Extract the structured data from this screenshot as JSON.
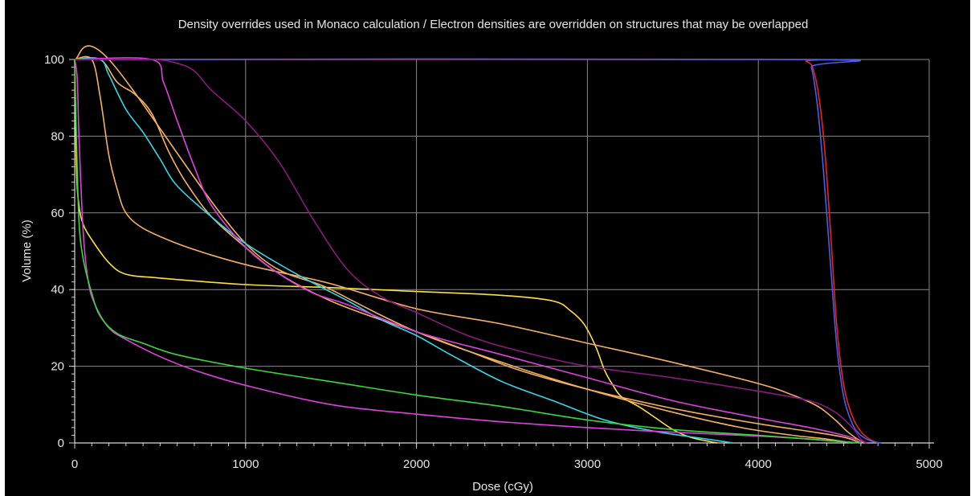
{
  "chart_data": {
    "type": "line",
    "title": "Density overrides used in Monaco calculation / Electron densities are overridden on structures that may be overlapped",
    "xlabel": "Dose (cGy)",
    "ylabel": "Volume (%)",
    "xlim": [
      0,
      5000
    ],
    "ylim": [
      0,
      100
    ],
    "xticks": [
      "0",
      "1000",
      "2000",
      "3000",
      "4000",
      "5000"
    ],
    "yticks": [
      "0",
      "20",
      "40",
      "60",
      "80",
      "100"
    ],
    "grid": true,
    "legend": "none",
    "background": "#000000",
    "series": [
      {
        "color": "#ee2020",
        "points": [
          [
            0,
            100
          ],
          [
            4100,
            100
          ],
          [
            4280,
            99.5
          ],
          [
            4330,
            96
          ],
          [
            4370,
            85
          ],
          [
            4400,
            70
          ],
          [
            4430,
            50
          ],
          [
            4460,
            30
          ],
          [
            4500,
            15
          ],
          [
            4550,
            7
          ],
          [
            4600,
            3
          ],
          [
            4650,
            1
          ],
          [
            4700,
            0
          ]
        ]
      },
      {
        "color": "#4a5cf0",
        "points": [
          [
            0,
            100
          ],
          [
            4270,
            100
          ],
          [
            4310,
            98
          ],
          [
            4340,
            90
          ],
          [
            4370,
            77
          ],
          [
            4400,
            60
          ],
          [
            4430,
            42
          ],
          [
            4460,
            25
          ],
          [
            4500,
            12
          ],
          [
            4550,
            5
          ],
          [
            4600,
            2
          ],
          [
            4660,
            0.5
          ],
          [
            4720,
            0
          ]
        ]
      },
      {
        "color": "#ffe040",
        "points": [
          [
            0,
            100
          ],
          [
            10,
            72
          ],
          [
            25,
            62
          ],
          [
            50,
            57
          ],
          [
            100,
            53
          ],
          [
            200,
            47
          ],
          [
            300,
            44
          ],
          [
            500,
            43
          ],
          [
            1000,
            41.3
          ],
          [
            1500,
            40.5
          ],
          [
            2000,
            39.5
          ],
          [
            2500,
            38.5
          ],
          [
            2800,
            37
          ],
          [
            2900,
            34.5
          ],
          [
            2980,
            31
          ],
          [
            3050,
            25
          ],
          [
            3100,
            19
          ],
          [
            3150,
            15
          ],
          [
            3200,
            12
          ],
          [
            3300,
            9.5
          ],
          [
            3400,
            6.5
          ],
          [
            3500,
            3.5
          ],
          [
            3600,
            1.5
          ],
          [
            3700,
            0.5
          ],
          [
            3760,
            0
          ]
        ]
      },
      {
        "color": "#f5b060",
        "points": [
          [
            0,
            100
          ],
          [
            100,
            100
          ],
          [
            150,
            90
          ],
          [
            200,
            75
          ],
          [
            250,
            66
          ],
          [
            300,
            60
          ],
          [
            400,
            56
          ],
          [
            600,
            52
          ],
          [
            800,
            49
          ],
          [
            1000,
            46.5
          ],
          [
            1200,
            44.5
          ],
          [
            1500,
            41.5
          ],
          [
            2000,
            35
          ],
          [
            2500,
            31
          ],
          [
            3000,
            26
          ],
          [
            3500,
            21
          ],
          [
            4000,
            15.5
          ],
          [
            4200,
            12.5
          ],
          [
            4350,
            9.5
          ],
          [
            4450,
            6
          ],
          [
            4520,
            3
          ],
          [
            4580,
            1
          ],
          [
            4620,
            0
          ]
        ]
      },
      {
        "color": "#f5b060",
        "points": [
          [
            0,
            100
          ],
          [
            150,
            100
          ],
          [
            250,
            94
          ],
          [
            350,
            91
          ],
          [
            450,
            86
          ],
          [
            550,
            76
          ],
          [
            650,
            68
          ],
          [
            800,
            59
          ],
          [
            1000,
            51
          ],
          [
            1200,
            44
          ],
          [
            1500,
            37
          ],
          [
            1800,
            32
          ],
          [
            2000,
            29
          ],
          [
            2300,
            24
          ],
          [
            2600,
            19
          ],
          [
            3000,
            14
          ],
          [
            3500,
            9
          ],
          [
            4000,
            5
          ],
          [
            4300,
            3
          ],
          [
            4500,
            1.5
          ],
          [
            4600,
            0
          ]
        ]
      },
      {
        "color": "#f5b060",
        "points": [
          [
            0,
            100
          ],
          [
            200,
            100
          ],
          [
            1000,
            52
          ],
          [
            1500,
            40
          ],
          [
            2000,
            29
          ],
          [
            2500,
            21
          ],
          [
            3000,
            14
          ],
          [
            3500,
            8
          ],
          [
            3900,
            4
          ],
          [
            4200,
            2
          ],
          [
            4400,
            1
          ],
          [
            4550,
            0
          ]
        ]
      },
      {
        "color": "#30d8e8",
        "points": [
          [
            0,
            100
          ],
          [
            150,
            100
          ],
          [
            200,
            96
          ],
          [
            300,
            87
          ],
          [
            400,
            81
          ],
          [
            500,
            74
          ],
          [
            600,
            67
          ],
          [
            800,
            59
          ],
          [
            1000,
            52
          ],
          [
            1300,
            44
          ],
          [
            1600,
            37
          ],
          [
            1800,
            32
          ],
          [
            2000,
            28
          ],
          [
            2200,
            23
          ],
          [
            2500,
            16
          ],
          [
            2800,
            11
          ],
          [
            3100,
            6
          ],
          [
            3400,
            3
          ],
          [
            3700,
            1
          ],
          [
            3850,
            0
          ]
        ]
      },
      {
        "color": "#e040e0",
        "points": [
          [
            0,
            100
          ],
          [
            450,
            100
          ],
          [
            520,
            94
          ],
          [
            600,
            84
          ],
          [
            700,
            72
          ],
          [
            800,
            62
          ],
          [
            1000,
            51
          ],
          [
            1200,
            44
          ],
          [
            1400,
            39
          ],
          [
            1600,
            36
          ],
          [
            2000,
            29
          ],
          [
            2500,
            23
          ],
          [
            3000,
            17
          ],
          [
            3500,
            11
          ],
          [
            4000,
            6.5
          ],
          [
            4300,
            4
          ],
          [
            4500,
            2
          ],
          [
            4600,
            0.5
          ],
          [
            4640,
            0
          ]
        ]
      },
      {
        "color": "#e040e0",
        "points": [
          [
            0,
            100
          ],
          [
            15,
            95
          ],
          [
            25,
            80
          ],
          [
            50,
            55
          ],
          [
            80,
            42
          ],
          [
            120,
            36
          ],
          [
            200,
            30
          ],
          [
            300,
            27
          ],
          [
            500,
            22.5
          ],
          [
            700,
            19
          ],
          [
            1000,
            15
          ],
          [
            1500,
            10
          ],
          [
            2000,
            7.5
          ],
          [
            2500,
            5.5
          ],
          [
            3000,
            4
          ],
          [
            3500,
            2.8
          ],
          [
            4000,
            1.8
          ],
          [
            4300,
            1
          ],
          [
            4500,
            0.3
          ],
          [
            4600,
            0
          ]
        ]
      },
      {
        "color": "#8a1a7e",
        "points": [
          [
            0,
            100
          ],
          [
            450,
            100
          ],
          [
            600,
            99
          ],
          [
            700,
            97
          ],
          [
            800,
            92
          ],
          [
            1000,
            84
          ],
          [
            1200,
            73
          ],
          [
            1400,
            58
          ],
          [
            1600,
            45
          ],
          [
            1800,
            38
          ],
          [
            2000,
            34
          ],
          [
            2300,
            28
          ],
          [
            2600,
            24
          ],
          [
            3000,
            20
          ],
          [
            3500,
            17
          ],
          [
            4000,
            13.5
          ],
          [
            4300,
            11
          ],
          [
            4450,
            8
          ],
          [
            4550,
            4
          ],
          [
            4600,
            1
          ],
          [
            4630,
            0
          ]
        ]
      },
      {
        "color": "#38d838",
        "points": [
          [
            0,
            100
          ],
          [
            10,
            80
          ],
          [
            25,
            58
          ],
          [
            50,
            48
          ],
          [
            100,
            39
          ],
          [
            150,
            33
          ],
          [
            250,
            28.5
          ],
          [
            400,
            26
          ],
          [
            600,
            23
          ],
          [
            1000,
            19.5
          ],
          [
            1500,
            16
          ],
          [
            2000,
            12.5
          ],
          [
            2500,
            9.5
          ],
          [
            3000,
            6
          ],
          [
            3500,
            3.5
          ],
          [
            4000,
            2
          ],
          [
            4300,
            1
          ],
          [
            4500,
            0.3
          ],
          [
            4600,
            0
          ]
        ]
      }
    ]
  }
}
